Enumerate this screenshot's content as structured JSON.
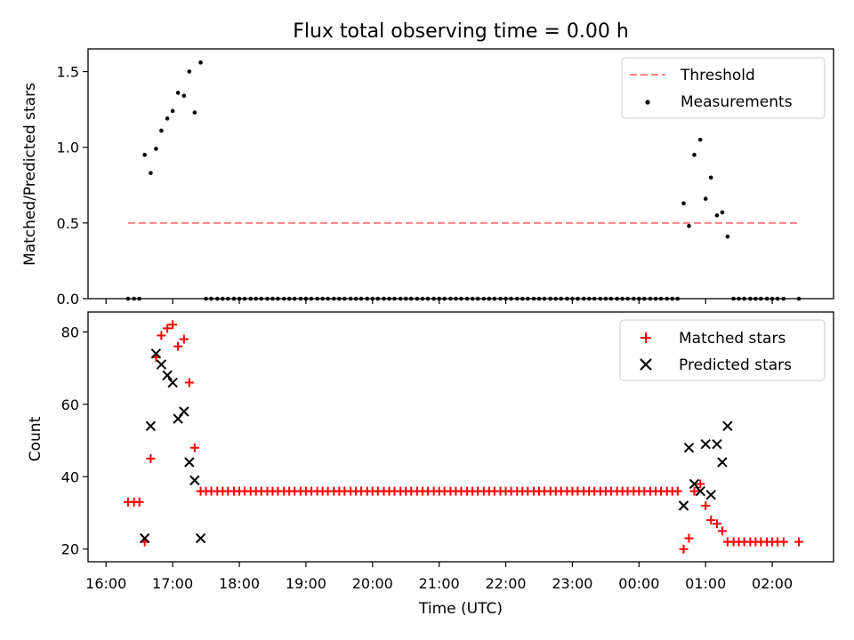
{
  "chart_data": [
    {
      "type": "scatter",
      "title": "Flux total observing time = 0.00 h",
      "xlabel": "",
      "ylabel": "Matched/Predicted stars",
      "xlim": [
        15.73,
        26.92
      ],
      "ylim": [
        0,
        1.65
      ],
      "yticks": [
        0.0,
        0.5,
        1.0,
        1.5
      ],
      "ytick_labels": [
        "0.0",
        "0.5",
        "1.0",
        "1.5"
      ],
      "legend": "top-right",
      "threshold": {
        "name": "Threshold",
        "color": "#ff7f7f",
        "y": 0.5,
        "x": [
          16.33,
          26.4
        ]
      },
      "series": [
        {
          "name": "Measurements",
          "marker": "dot",
          "color": "#000000",
          "points": [
            [
              16.33,
              0
            ],
            [
              16.42,
              0
            ],
            [
              16.5,
              0
            ],
            [
              16.58,
              0.95
            ],
            [
              16.67,
              0.83
            ],
            [
              16.75,
              0.99
            ],
            [
              16.83,
              1.11
            ],
            [
              16.92,
              1.19
            ],
            [
              17.0,
              1.24
            ],
            [
              17.08,
              1.36
            ],
            [
              17.17,
              1.34
            ],
            [
              17.25,
              1.5
            ],
            [
              17.33,
              1.23
            ],
            [
              17.42,
              1.56
            ],
            [
              17.5,
              0
            ],
            [
              17.58,
              0
            ],
            [
              17.67,
              0
            ],
            [
              17.75,
              0
            ],
            [
              17.83,
              0
            ],
            [
              17.92,
              0
            ],
            [
              18.0,
              0
            ],
            [
              18.08,
              0
            ],
            [
              18.17,
              0
            ],
            [
              18.25,
              0
            ],
            [
              18.33,
              0
            ],
            [
              18.42,
              0
            ],
            [
              18.5,
              0
            ],
            [
              18.58,
              0
            ],
            [
              18.67,
              0
            ],
            [
              18.75,
              0
            ],
            [
              18.83,
              0
            ],
            [
              18.92,
              0
            ],
            [
              19.0,
              0
            ],
            [
              19.08,
              0
            ],
            [
              19.17,
              0
            ],
            [
              19.25,
              0
            ],
            [
              19.33,
              0
            ],
            [
              19.42,
              0
            ],
            [
              19.5,
              0
            ],
            [
              19.58,
              0
            ],
            [
              19.67,
              0
            ],
            [
              19.75,
              0
            ],
            [
              19.83,
              0
            ],
            [
              19.92,
              0
            ],
            [
              20.0,
              0
            ],
            [
              20.08,
              0
            ],
            [
              20.17,
              0
            ],
            [
              20.25,
              0
            ],
            [
              20.33,
              0
            ],
            [
              20.42,
              0
            ],
            [
              20.5,
              0
            ],
            [
              20.58,
              0
            ],
            [
              20.67,
              0
            ],
            [
              20.75,
              0
            ],
            [
              20.83,
              0
            ],
            [
              20.92,
              0
            ],
            [
              21.0,
              0
            ],
            [
              21.08,
              0
            ],
            [
              21.17,
              0
            ],
            [
              21.25,
              0
            ],
            [
              21.33,
              0
            ],
            [
              21.42,
              0
            ],
            [
              21.5,
              0
            ],
            [
              21.58,
              0
            ],
            [
              21.67,
              0
            ],
            [
              21.75,
              0
            ],
            [
              21.83,
              0
            ],
            [
              21.92,
              0
            ],
            [
              22.0,
              0
            ],
            [
              22.08,
              0
            ],
            [
              22.17,
              0
            ],
            [
              22.25,
              0
            ],
            [
              22.33,
              0
            ],
            [
              22.42,
              0
            ],
            [
              22.5,
              0
            ],
            [
              22.58,
              0
            ],
            [
              22.67,
              0
            ],
            [
              22.75,
              0
            ],
            [
              22.83,
              0
            ],
            [
              22.92,
              0
            ],
            [
              23.0,
              0
            ],
            [
              23.08,
              0
            ],
            [
              23.17,
              0
            ],
            [
              23.25,
              0
            ],
            [
              23.33,
              0
            ],
            [
              23.42,
              0
            ],
            [
              23.5,
              0
            ],
            [
              23.58,
              0
            ],
            [
              23.67,
              0
            ],
            [
              23.75,
              0
            ],
            [
              23.83,
              0
            ],
            [
              23.92,
              0
            ],
            [
              24.0,
              0
            ],
            [
              24.08,
              0
            ],
            [
              24.17,
              0
            ],
            [
              24.25,
              0
            ],
            [
              24.33,
              0
            ],
            [
              24.42,
              0
            ],
            [
              24.5,
              0
            ],
            [
              24.58,
              0
            ],
            [
              24.67,
              0.63
            ],
            [
              24.75,
              0.48
            ],
            [
              24.83,
              0.95
            ],
            [
              24.92,
              1.05
            ],
            [
              25.0,
              0.66
            ],
            [
              25.08,
              0.8
            ],
            [
              25.17,
              0.55
            ],
            [
              25.25,
              0.57
            ],
            [
              25.33,
              0.41
            ],
            [
              25.42,
              0
            ],
            [
              25.5,
              0
            ],
            [
              25.58,
              0
            ],
            [
              25.67,
              0
            ],
            [
              25.75,
              0
            ],
            [
              25.83,
              0
            ],
            [
              25.92,
              0
            ],
            [
              26.0,
              0
            ],
            [
              26.08,
              0
            ],
            [
              26.17,
              0
            ],
            [
              26.4,
              0
            ]
          ]
        }
      ]
    },
    {
      "type": "scatter",
      "title": "",
      "xlabel": "Time (UTC)",
      "ylabel": "Count",
      "xlim": [
        15.73,
        26.92
      ],
      "ylim": [
        16.5,
        85.5
      ],
      "yticks": [
        20,
        40,
        60,
        80
      ],
      "ytick_labels": [
        "20",
        "40",
        "60",
        "80"
      ],
      "xticks": [
        16,
        17,
        18,
        19,
        20,
        21,
        22,
        23,
        24,
        25,
        26
      ],
      "xtick_labels": [
        "16:00",
        "17:00",
        "18:00",
        "19:00",
        "20:00",
        "21:00",
        "22:00",
        "23:00",
        "00:00",
        "01:00",
        "02:00"
      ],
      "legend": "top-right",
      "series": [
        {
          "name": "Matched stars",
          "marker": "plus",
          "color": "#ff0000",
          "points": [
            [
              16.33,
              33
            ],
            [
              16.42,
              33
            ],
            [
              16.5,
              33
            ],
            [
              16.58,
              22
            ],
            [
              16.67,
              45
            ],
            [
              16.75,
              73
            ],
            [
              16.83,
              79
            ],
            [
              16.92,
              81
            ],
            [
              17.0,
              82
            ],
            [
              17.08,
              76
            ],
            [
              17.17,
              78
            ],
            [
              17.25,
              66
            ],
            [
              17.33,
              48
            ],
            [
              17.42,
              36
            ],
            [
              17.5,
              36
            ],
            [
              17.58,
              36
            ],
            [
              17.67,
              36
            ],
            [
              17.75,
              36
            ],
            [
              17.83,
              36
            ],
            [
              17.92,
              36
            ],
            [
              18.0,
              36
            ],
            [
              18.08,
              36
            ],
            [
              18.17,
              36
            ],
            [
              18.25,
              36
            ],
            [
              18.33,
              36
            ],
            [
              18.42,
              36
            ],
            [
              18.5,
              36
            ],
            [
              18.58,
              36
            ],
            [
              18.67,
              36
            ],
            [
              18.75,
              36
            ],
            [
              18.83,
              36
            ],
            [
              18.92,
              36
            ],
            [
              19.0,
              36
            ],
            [
              19.08,
              36
            ],
            [
              19.17,
              36
            ],
            [
              19.25,
              36
            ],
            [
              19.33,
              36
            ],
            [
              19.42,
              36
            ],
            [
              19.5,
              36
            ],
            [
              19.58,
              36
            ],
            [
              19.67,
              36
            ],
            [
              19.75,
              36
            ],
            [
              19.83,
              36
            ],
            [
              19.92,
              36
            ],
            [
              20.0,
              36
            ],
            [
              20.08,
              36
            ],
            [
              20.17,
              36
            ],
            [
              20.25,
              36
            ],
            [
              20.33,
              36
            ],
            [
              20.42,
              36
            ],
            [
              20.5,
              36
            ],
            [
              20.58,
              36
            ],
            [
              20.67,
              36
            ],
            [
              20.75,
              36
            ],
            [
              20.83,
              36
            ],
            [
              20.92,
              36
            ],
            [
              21.0,
              36
            ],
            [
              21.08,
              36
            ],
            [
              21.17,
              36
            ],
            [
              21.25,
              36
            ],
            [
              21.33,
              36
            ],
            [
              21.42,
              36
            ],
            [
              21.5,
              36
            ],
            [
              21.58,
              36
            ],
            [
              21.67,
              36
            ],
            [
              21.75,
              36
            ],
            [
              21.83,
              36
            ],
            [
              21.92,
              36
            ],
            [
              22.0,
              36
            ],
            [
              22.08,
              36
            ],
            [
              22.17,
              36
            ],
            [
              22.25,
              36
            ],
            [
              22.33,
              36
            ],
            [
              22.42,
              36
            ],
            [
              22.5,
              36
            ],
            [
              22.58,
              36
            ],
            [
              22.67,
              36
            ],
            [
              22.75,
              36
            ],
            [
              22.83,
              36
            ],
            [
              22.92,
              36
            ],
            [
              23.0,
              36
            ],
            [
              23.08,
              36
            ],
            [
              23.17,
              36
            ],
            [
              23.25,
              36
            ],
            [
              23.33,
              36
            ],
            [
              23.42,
              36
            ],
            [
              23.5,
              36
            ],
            [
              23.58,
              36
            ],
            [
              23.67,
              36
            ],
            [
              23.75,
              36
            ],
            [
              23.83,
              36
            ],
            [
              23.92,
              36
            ],
            [
              24.0,
              36
            ],
            [
              24.08,
              36
            ],
            [
              24.17,
              36
            ],
            [
              24.25,
              36
            ],
            [
              24.33,
              36
            ],
            [
              24.42,
              36
            ],
            [
              24.5,
              36
            ],
            [
              24.58,
              36
            ],
            [
              24.67,
              20
            ],
            [
              24.75,
              23
            ],
            [
              24.83,
              36
            ],
            [
              24.92,
              38
            ],
            [
              25.0,
              32
            ],
            [
              25.08,
              28
            ],
            [
              25.17,
              27
            ],
            [
              25.25,
              25
            ],
            [
              25.33,
              22
            ],
            [
              25.42,
              22
            ],
            [
              25.5,
              22
            ],
            [
              25.58,
              22
            ],
            [
              25.67,
              22
            ],
            [
              25.75,
              22
            ],
            [
              25.83,
              22
            ],
            [
              25.92,
              22
            ],
            [
              26.0,
              22
            ],
            [
              26.08,
              22
            ],
            [
              26.17,
              22
            ],
            [
              26.4,
              22
            ]
          ]
        },
        {
          "name": "Predicted stars",
          "marker": "x",
          "color": "#000000",
          "points": [
            [
              16.58,
              23
            ],
            [
              16.67,
              54
            ],
            [
              16.75,
              74
            ],
            [
              16.83,
              71
            ],
            [
              16.92,
              68
            ],
            [
              17.0,
              66
            ],
            [
              17.08,
              56
            ],
            [
              17.17,
              58
            ],
            [
              17.25,
              44
            ],
            [
              17.33,
              39
            ],
            [
              17.42,
              23
            ],
            [
              24.67,
              32
            ],
            [
              24.75,
              48
            ],
            [
              24.83,
              38
            ],
            [
              24.92,
              36
            ],
            [
              25.0,
              49
            ],
            [
              25.08,
              35
            ],
            [
              25.17,
              49
            ],
            [
              25.25,
              44
            ],
            [
              25.33,
              54
            ]
          ]
        }
      ]
    }
  ]
}
